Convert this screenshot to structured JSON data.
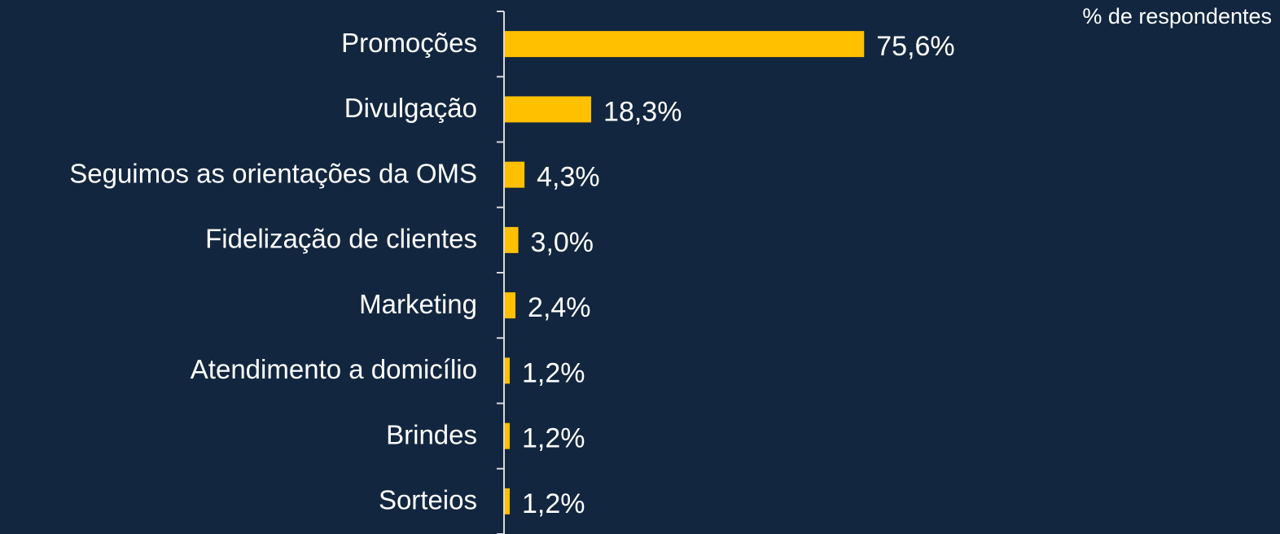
{
  "chart_data": {
    "type": "bar",
    "orientation": "horizontal",
    "note": "% de respondentes",
    "categories": [
      "Promoções",
      "Divulgação",
      "Seguimos as orientações da OMS",
      "Fidelização de clientes",
      "Marketing",
      "Atendimento a domicílio",
      "Brindes",
      "Sorteios"
    ],
    "values": [
      75.6,
      18.3,
      4.3,
      3.0,
      2.4,
      1.2,
      1.2,
      1.2
    ],
    "value_labels": [
      "75,6%",
      "18,3%",
      "4,3%",
      "3,0%",
      "2,4%",
      "1,2%",
      "1,2%",
      "1,2%"
    ],
    "color": "#ffc000"
  }
}
